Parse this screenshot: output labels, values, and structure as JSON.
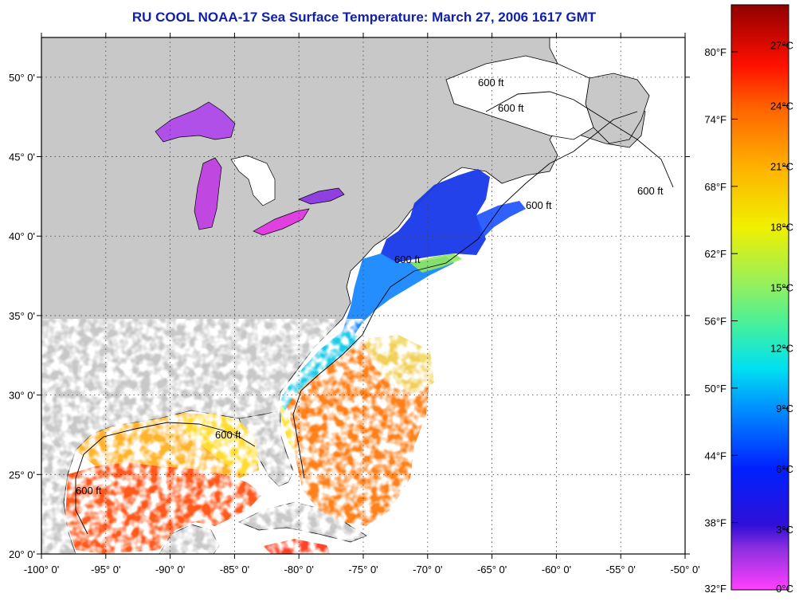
{
  "title": "RU COOL  NOAA-17  Sea Surface Temperature:  March 27, 2006 1617 GMT",
  "map": {
    "lon_range": [
      -100,
      -50
    ],
    "lat_range": [
      20,
      52.5
    ],
    "lon_ticks": [
      {
        "value": -100,
        "label": "-100° 0'"
      },
      {
        "value": -95,
        "label": "-95° 0'"
      },
      {
        "value": -90,
        "label": "-90° 0'"
      },
      {
        "value": -85,
        "label": "-85° 0'"
      },
      {
        "value": -80,
        "label": "-80° 0'"
      },
      {
        "value": -75,
        "label": "-75° 0'"
      },
      {
        "value": -70,
        "label": "-70° 0'"
      },
      {
        "value": -65,
        "label": "-65° 0'"
      },
      {
        "value": -60,
        "label": "-60° 0'"
      },
      {
        "value": -55,
        "label": "-55° 0'"
      },
      {
        "value": -50,
        "label": "-50° 0'"
      }
    ],
    "lat_ticks": [
      {
        "value": 50,
        "label": "50° 0'"
      },
      {
        "value": 45,
        "label": "45° 0'"
      },
      {
        "value": 40,
        "label": "40° 0'"
      },
      {
        "value": 35,
        "label": "35° 0'"
      },
      {
        "value": 30,
        "label": "30° 0'"
      },
      {
        "value": 25,
        "label": "25° 0'"
      },
      {
        "value": 20,
        "label": "20° 0'"
      }
    ],
    "contour_label": "600 ft",
    "colors": {
      "land": "#c8c8c8",
      "no_data": "#ffffff",
      "grid": "#444444"
    }
  },
  "colorbar": {
    "range_c": [
      0,
      29
    ],
    "gradient": [
      {
        "c": 0,
        "color": "#ff40ff"
      },
      {
        "c": 2,
        "color": "#9030e0"
      },
      {
        "c": 3.2,
        "color": "#3010d8"
      },
      {
        "c": 6,
        "color": "#0020ff"
      },
      {
        "c": 9,
        "color": "#0090ff"
      },
      {
        "c": 11,
        "color": "#00e0f0"
      },
      {
        "c": 13,
        "color": "#40f0a0"
      },
      {
        "c": 15,
        "color": "#90f060"
      },
      {
        "c": 18,
        "color": "#f0f000"
      },
      {
        "c": 21,
        "color": "#ffb000"
      },
      {
        "c": 24,
        "color": "#ff6000"
      },
      {
        "c": 26,
        "color": "#ff1000"
      },
      {
        "c": 29,
        "color": "#900000"
      }
    ],
    "celsius_labels": [
      {
        "value": 27,
        "label": "27°C"
      },
      {
        "value": 24,
        "label": "24°C"
      },
      {
        "value": 21,
        "label": "21°C"
      },
      {
        "value": 18,
        "label": "18°C"
      },
      {
        "value": 15,
        "label": "15°C"
      },
      {
        "value": 12,
        "label": "12°C"
      },
      {
        "value": 9,
        "label": "9°C"
      },
      {
        "value": 6,
        "label": "6°C"
      },
      {
        "value": 3,
        "label": "3°C"
      },
      {
        "value": 0,
        "label": "0°C"
      }
    ],
    "fahrenheit_labels": [
      {
        "value": 80,
        "label": "80°F"
      },
      {
        "value": 74,
        "label": "74°F"
      },
      {
        "value": 68,
        "label": "68°F"
      },
      {
        "value": 62,
        "label": "62°F"
      },
      {
        "value": 56,
        "label": "56°F"
      },
      {
        "value": 50,
        "label": "50°F"
      },
      {
        "value": 44,
        "label": "44°F"
      },
      {
        "value": 38,
        "label": "38°F"
      },
      {
        "value": 32,
        "label": "32°F"
      }
    ]
  }
}
